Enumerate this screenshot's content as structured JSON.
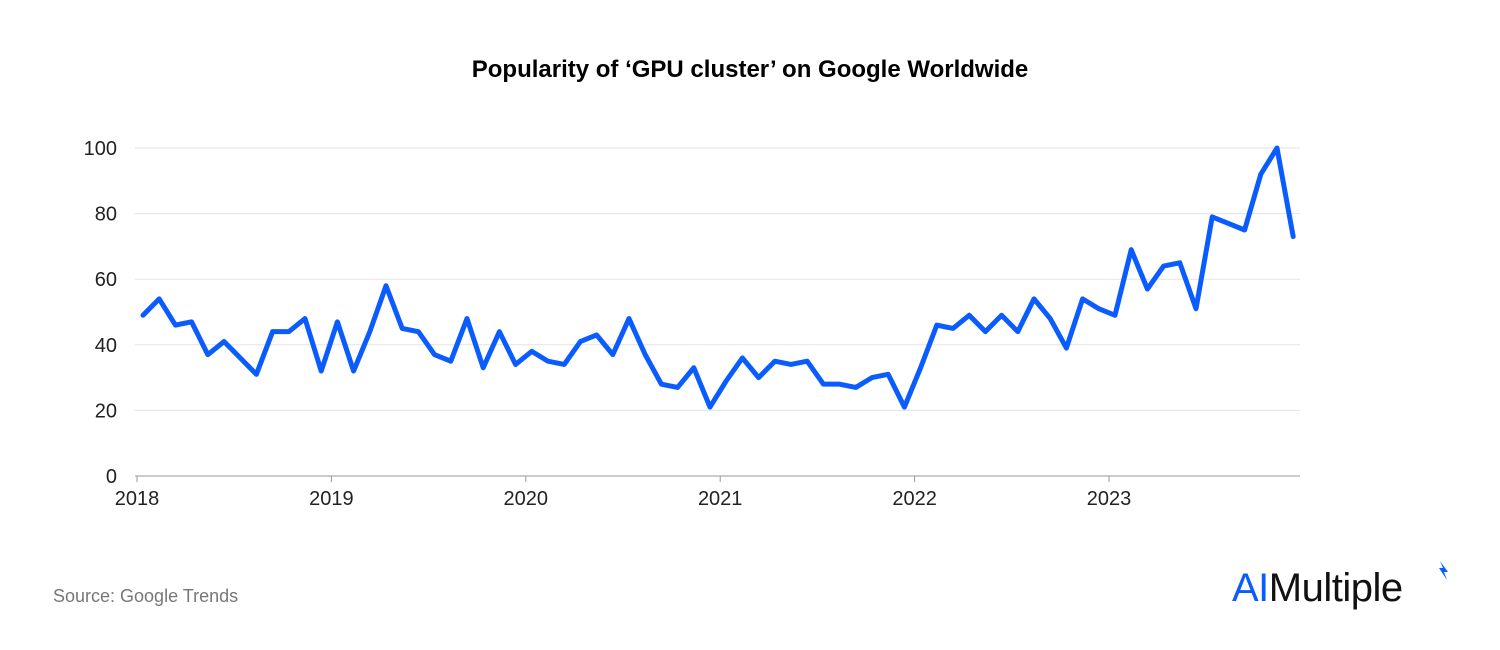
{
  "chart_data": {
    "type": "line",
    "title": "Popularity of ‘GPU cluster’ on Google Worldwide",
    "xlabel": "",
    "ylabel": "",
    "ylim": [
      0,
      100
    ],
    "yticks": [
      0,
      20,
      40,
      60,
      80,
      100
    ],
    "xtick_labels": [
      "2018",
      "2019",
      "2020",
      "2021",
      "2022",
      "2023"
    ],
    "x_start": "2018-01",
    "x_interval": "monthly",
    "grid": true,
    "line_color": "#0b5cff",
    "values": [
      49,
      54,
      46,
      47,
      37,
      41,
      36,
      31,
      44,
      44,
      48,
      32,
      47,
      32,
      44,
      58,
      45,
      44,
      37,
      35,
      48,
      33,
      44,
      34,
      38,
      35,
      34,
      41,
      43,
      37,
      48,
      37,
      28,
      27,
      33,
      21,
      29,
      36,
      30,
      35,
      34,
      35,
      28,
      28,
      27,
      30,
      31,
      21,
      33,
      46,
      45,
      49,
      44,
      49,
      44,
      54,
      48,
      39,
      54,
      51,
      49,
      69,
      57,
      64,
      65,
      51,
      79,
      77,
      75,
      92,
      100,
      73
    ]
  },
  "source": "Source: Google Trends",
  "logo": {
    "part1": "AI",
    "part2": "Multiple",
    "accent": "#0b5cff"
  }
}
